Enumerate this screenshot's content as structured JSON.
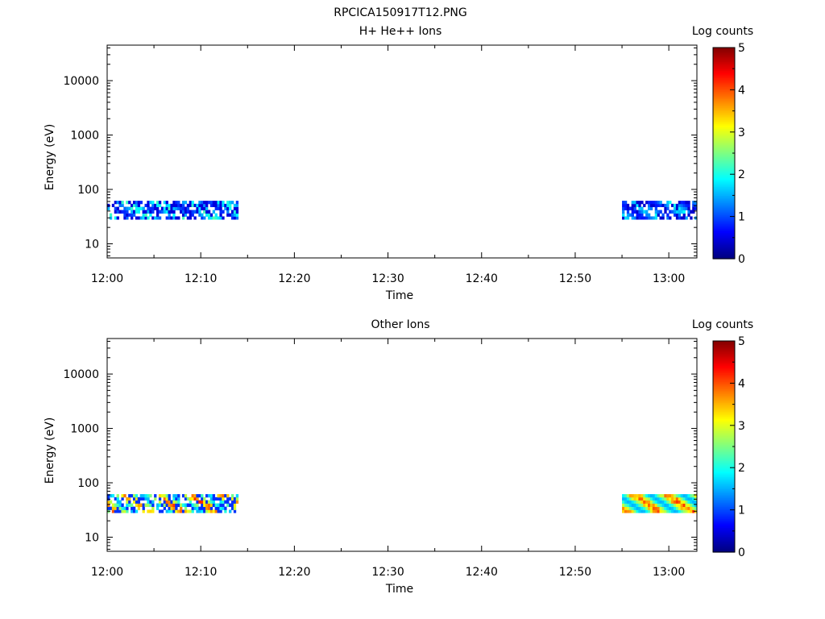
{
  "title": "RPCICA150917T12.PNG",
  "chart_data": [
    {
      "type": "heatmap",
      "title": "H+ He++ Ions",
      "xlabel": "Time",
      "ylabel": "Energy (eV)",
      "x_ticks": [
        "12:00",
        "12:10",
        "12:20",
        "12:30",
        "12:40",
        "12:50",
        "13:00"
      ],
      "xlim": [
        "12:00",
        "13:03"
      ],
      "y_scale": "log",
      "ylim": [
        5.5,
        45000
      ],
      "y_ticks": [
        "10",
        "100",
        "1000",
        "10000"
      ],
      "colorbar": {
        "label": "Log counts",
        "range": [
          0,
          5
        ],
        "ticks": [
          "0",
          "1",
          "2",
          "3",
          "4",
          "5"
        ]
      },
      "energy_bins": [
        30,
        34,
        39,
        45,
        51,
        58
      ],
      "blocks": [
        {
          "start": "12:00",
          "end": "12:14",
          "max_log_counts": 2.3,
          "sparse": true
        },
        {
          "start": "12:55",
          "end": "13:03",
          "max_log_counts": 2.0,
          "sparse": true
        }
      ]
    },
    {
      "type": "heatmap",
      "title": "Other Ions",
      "xlabel": "Time",
      "ylabel": "Energy (eV)",
      "x_ticks": [
        "12:00",
        "12:10",
        "12:20",
        "12:30",
        "12:40",
        "12:50",
        "13:00"
      ],
      "xlim": [
        "12:00",
        "13:03"
      ],
      "y_scale": "log",
      "ylim": [
        5.5,
        45000
      ],
      "y_ticks": [
        "10",
        "100",
        "1000",
        "10000"
      ],
      "colorbar": {
        "label": "Log counts",
        "range": [
          0,
          5
        ],
        "ticks": [
          "0",
          "1",
          "2",
          "3",
          "4",
          "5"
        ]
      },
      "energy_bins": [
        30,
        34,
        39,
        45,
        51,
        58
      ],
      "blocks": [
        {
          "start": "12:00",
          "end": "12:14",
          "max_log_counts": 4.3,
          "sparse": true
        },
        {
          "start": "12:55",
          "end": "13:03",
          "max_log_counts": 4.3,
          "sparse": false
        }
      ]
    }
  ]
}
